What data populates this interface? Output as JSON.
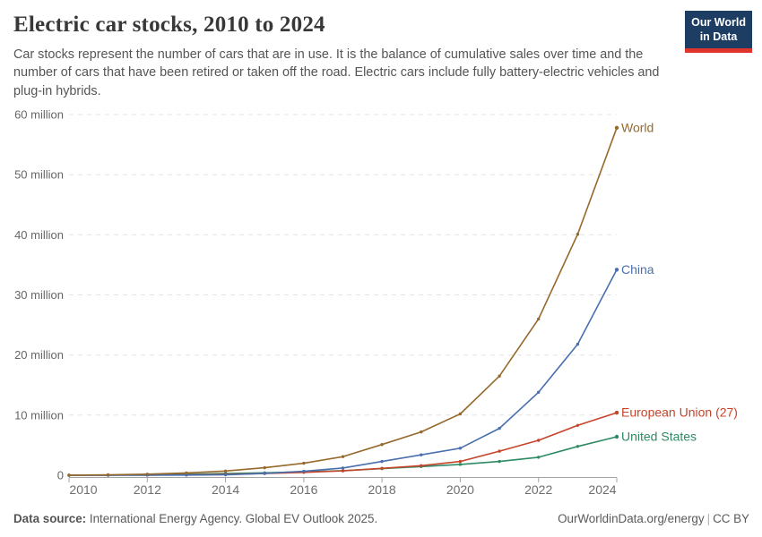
{
  "header": {
    "title": "Electric car stocks, 2010 to 2024",
    "subtitle": "Car stocks represent the number of cars that are in use. It is the balance of cumulative sales over time and the number of cars that have been retired or taken off the road. Electric cars include fully battery-electric vehicles and plug-in hybrids.",
    "logo": {
      "line1": "Our World",
      "line2": "in Data"
    }
  },
  "footer": {
    "source_label": "Data source:",
    "source_text": " International Energy Agency. Global EV Outlook 2025.",
    "site": "OurWorldinData.org/energy",
    "separator": "|",
    "license": "CC BY"
  },
  "colors": {
    "background": "#ffffff",
    "title_text": "#383838",
    "subtitle_text": "#555555",
    "axis_text": "#666666",
    "gridline": "#e2e2e2",
    "axis_line": "#a3a3a3",
    "logo_navy": "#1d3d63",
    "logo_red": "#e0352d",
    "world_line": "#96692d",
    "china_line": "#4a6fae",
    "eu_line": "#c5442a",
    "us_line": "#2e8a65"
  },
  "chart_data": {
    "type": "line",
    "title": "Electric car stocks, 2010 to 2024",
    "xlabel": "",
    "ylabel": "",
    "unit": "million cars",
    "grid": "dashed horizontal gridlines",
    "legend_position": "right edge of lines",
    "x": [
      2010,
      2011,
      2012,
      2013,
      2014,
      2015,
      2016,
      2017,
      2018,
      2019,
      2020,
      2021,
      2022,
      2023,
      2024
    ],
    "xticks": [
      2010,
      2012,
      2014,
      2016,
      2018,
      2020,
      2022,
      2024
    ],
    "ylim": [
      0,
      60
    ],
    "yticks": [
      0,
      10,
      20,
      30,
      40,
      50,
      60
    ],
    "ytick_labels": [
      "0",
      "10 million",
      "20 million",
      "30 million",
      "40 million",
      "50 million",
      "60 million"
    ],
    "series": [
      {
        "name": "World",
        "color": "#96692d",
        "values": [
          0.02,
          0.07,
          0.18,
          0.38,
          0.7,
          1.25,
          2.0,
          3.1,
          5.1,
          7.2,
          10.2,
          16.5,
          26.0,
          40.1,
          57.8
        ]
      },
      {
        "name": "China",
        "color": "#4a6fae",
        "values": [
          0.001,
          0.006,
          0.017,
          0.032,
          0.08,
          0.31,
          0.65,
          1.2,
          2.3,
          3.4,
          4.5,
          7.8,
          13.8,
          21.8,
          34.2
        ]
      },
      {
        "name": "European Union (27)",
        "color": "#c5442a",
        "values": [
          0.001,
          0.012,
          0.033,
          0.07,
          0.15,
          0.29,
          0.47,
          0.73,
          1.15,
          1.6,
          2.3,
          4.0,
          5.8,
          8.3,
          10.4
        ]
      },
      {
        "name": "United States",
        "color": "#2e8a65",
        "values": [
          0.004,
          0.021,
          0.072,
          0.17,
          0.29,
          0.4,
          0.56,
          0.76,
          1.1,
          1.45,
          1.8,
          2.3,
          3.0,
          4.8,
          6.4
        ]
      }
    ]
  }
}
